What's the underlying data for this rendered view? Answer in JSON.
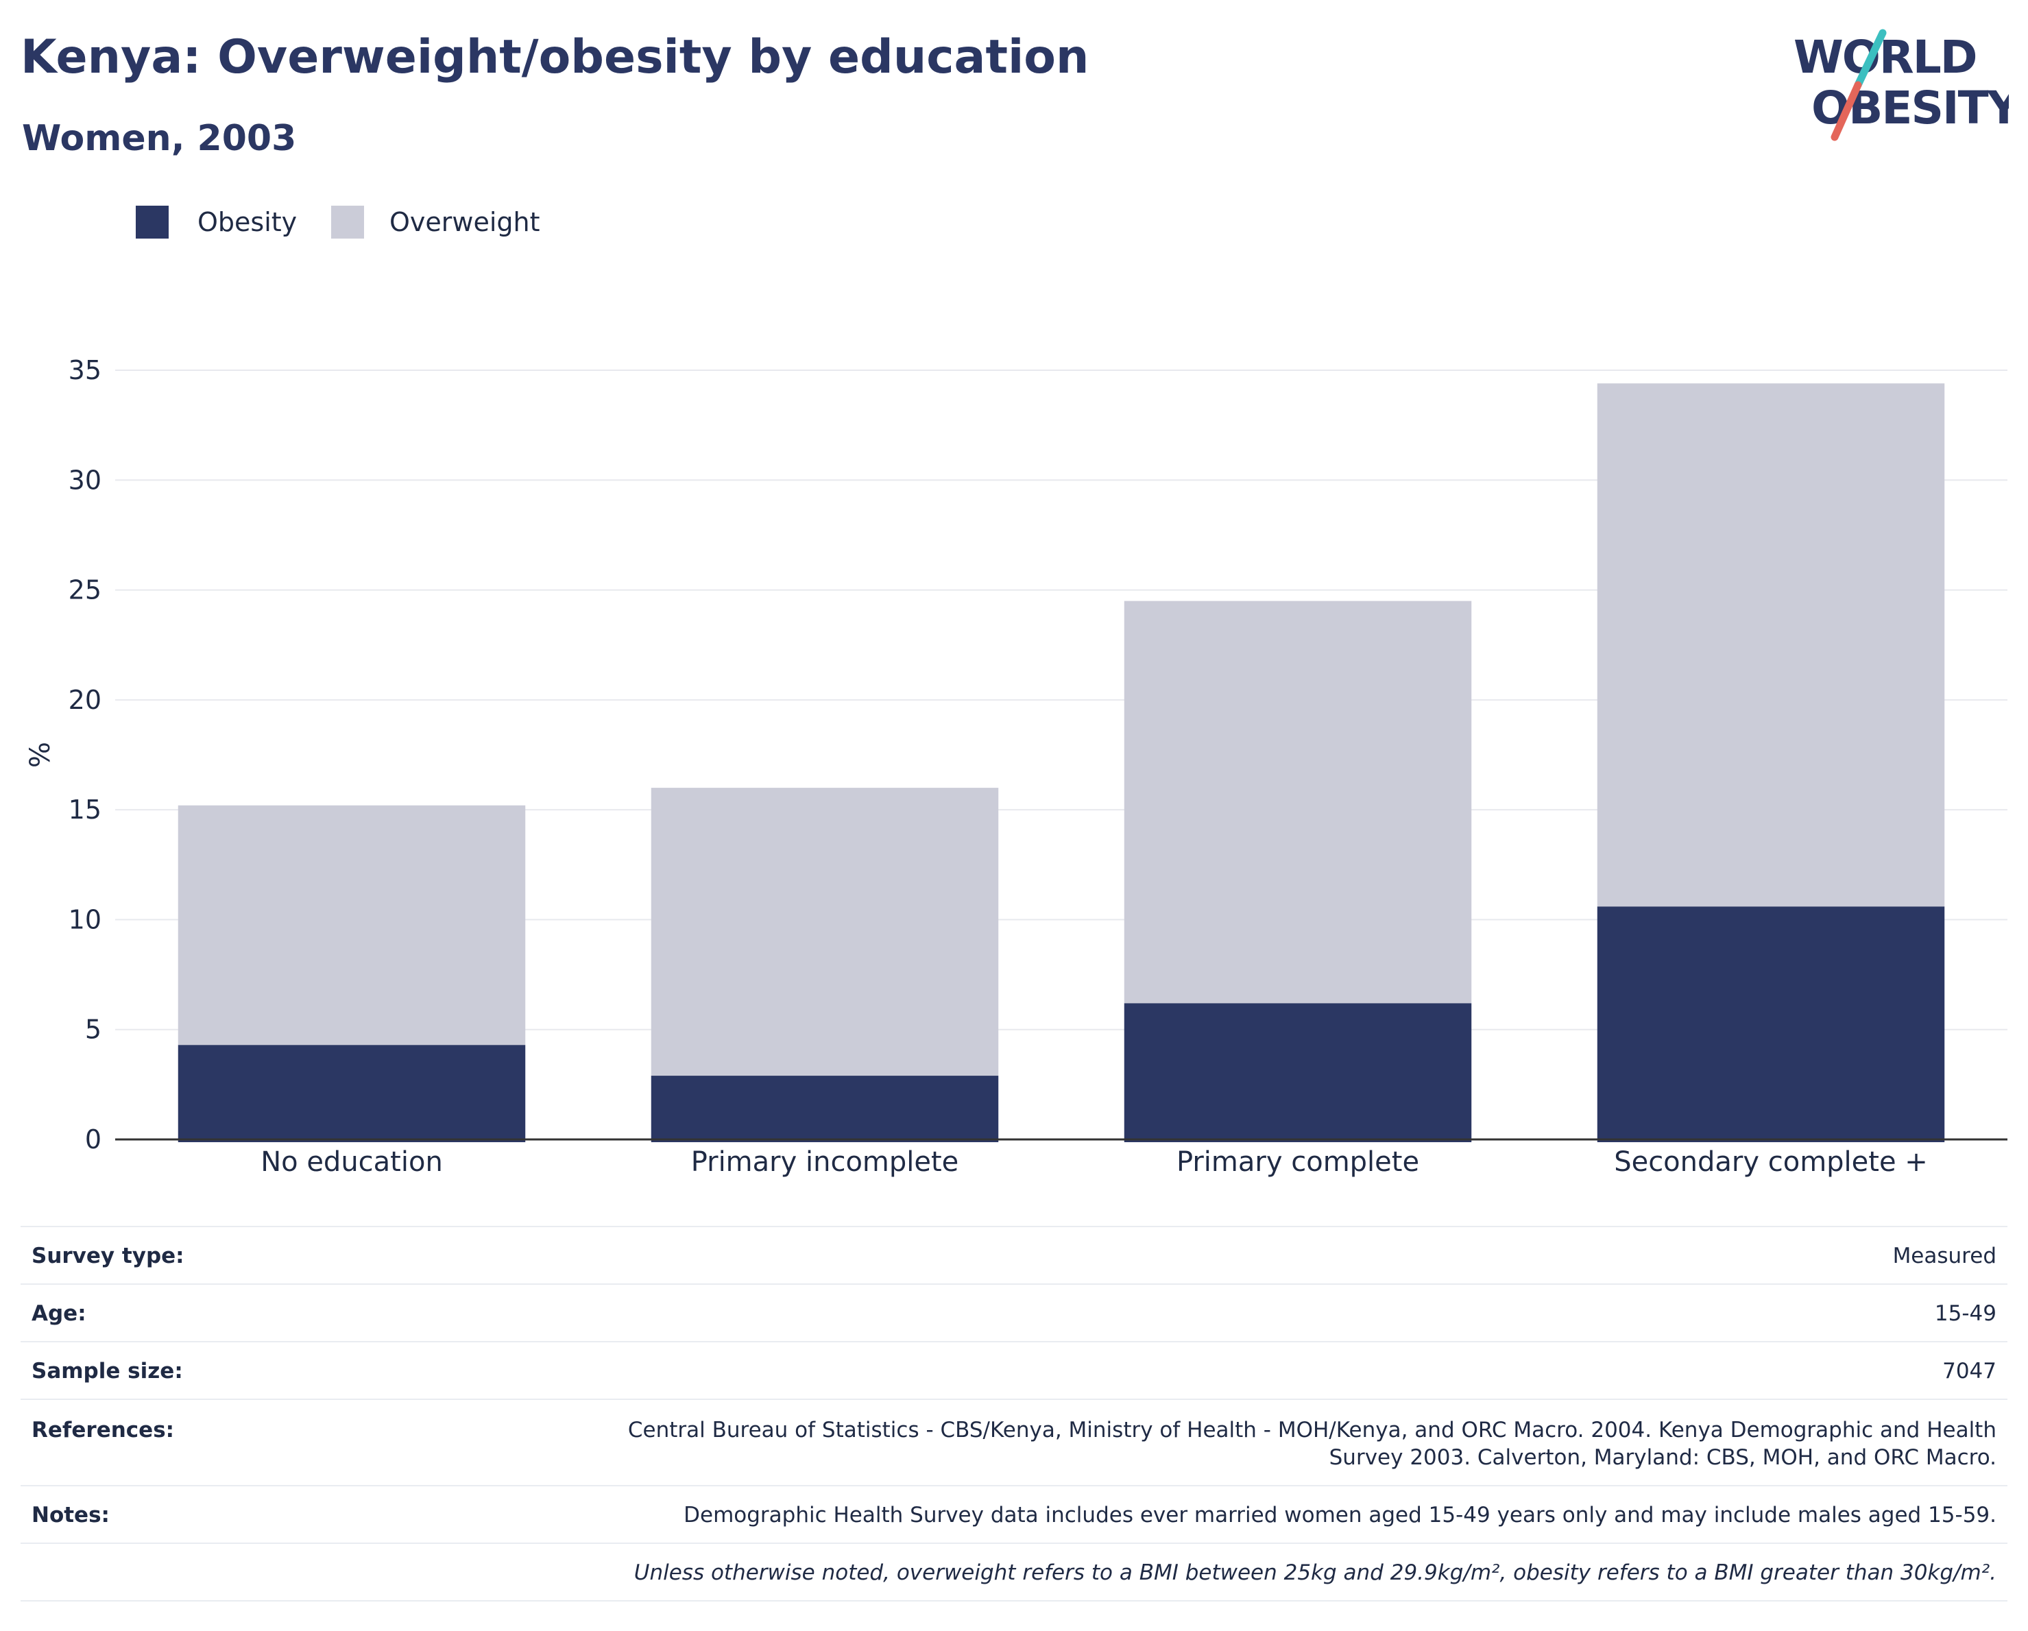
{
  "header": {
    "title": "Kenya: Overweight/obesity by education",
    "subtitle": "Women, 2003"
  },
  "logo": {
    "line1": "WORLD",
    "line2": "OBESITY",
    "colors": {
      "text": "#2b3763",
      "slash_top": "#3cbfc0",
      "slash_bottom": "#e4665a"
    }
  },
  "colors": {
    "obesity": "#2b3763",
    "overweight": "#cbccd8",
    "grid": "#e8e9ee",
    "axis": "#333333"
  },
  "chart_data": {
    "type": "bar",
    "stacked": true,
    "categories": [
      "No education",
      "Primary incomplete",
      "Primary complete",
      "Secondary complete +"
    ],
    "series": [
      {
        "name": "Obesity",
        "values": [
          4.3,
          2.9,
          6.2,
          10.6
        ]
      },
      {
        "name": "Overweight",
        "values": [
          10.9,
          13.1,
          18.3,
          23.8
        ]
      }
    ],
    "ylabel": "%",
    "yticks": [
      0,
      5,
      10,
      15,
      20,
      25,
      30,
      35
    ],
    "ylim": [
      0,
      35
    ],
    "grid": true,
    "legend_position": "top-left"
  },
  "legend": {
    "items": [
      {
        "label": "Obesity"
      },
      {
        "label": "Overweight"
      }
    ]
  },
  "info_table": {
    "rows": [
      {
        "label": "Survey type:",
        "value": "Measured"
      },
      {
        "label": "Age:",
        "value": "15-49"
      },
      {
        "label": "Sample size:",
        "value": "7047"
      },
      {
        "label": "References:",
        "value_line1": "Central Bureau of Statistics - CBS/Kenya, Ministry of Health - MOH/Kenya, and ORC Macro. 2004. Kenya Demographic and Health",
        "value_line2": "Survey 2003. Calverton, Maryland: CBS, MOH, and ORC Macro."
      },
      {
        "label": "Notes:",
        "value": "Demographic Health Survey data includes ever married women aged 15-49 years only and may include males aged 15-59."
      }
    ],
    "footnote": "Unless otherwise noted, overweight refers to a BMI between 25kg and 29.9kg/m², obesity refers to a BMI greater than 30kg/m²."
  }
}
